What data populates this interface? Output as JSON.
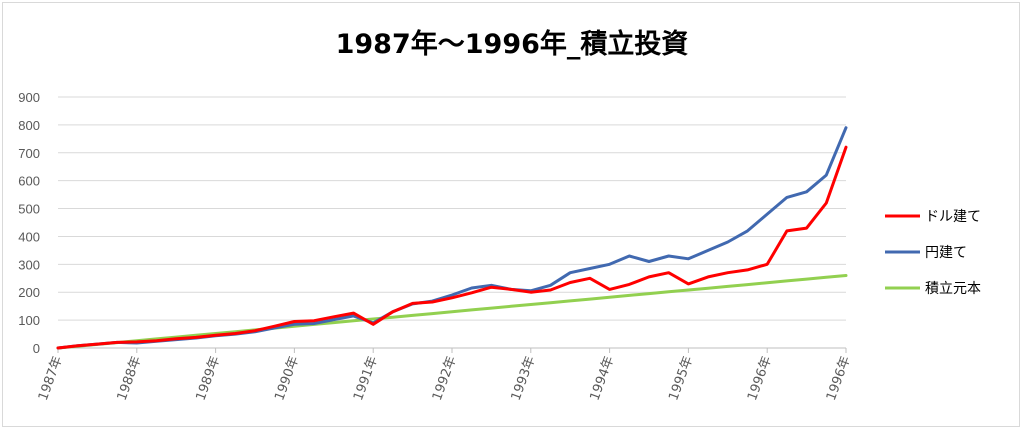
{
  "chart_data": {
    "type": "line",
    "title": "1987年～1996年_積立投資",
    "xlabel": "",
    "ylabel": "",
    "ylim": [
      0,
      900
    ],
    "yticks": [
      0,
      100,
      200,
      300,
      400,
      500,
      600,
      700,
      800,
      900
    ],
    "xticks": [
      "1987年",
      "1988年",
      "1989年",
      "1990年",
      "1991年",
      "1992年",
      "1993年",
      "1994年",
      "1995年",
      "1996年",
      "1996年"
    ],
    "grid": true,
    "legend_position": "right",
    "x": [
      1987.0,
      1987.25,
      1987.5,
      1987.75,
      1988.0,
      1988.25,
      1988.5,
      1988.75,
      1989.0,
      1989.25,
      1989.5,
      1989.75,
      1990.0,
      1990.25,
      1990.5,
      1990.75,
      1991.0,
      1991.25,
      1991.5,
      1991.75,
      1992.0,
      1992.25,
      1992.5,
      1992.75,
      1993.0,
      1993.25,
      1993.5,
      1993.75,
      1994.0,
      1994.25,
      1994.5,
      1994.75,
      1995.0,
      1995.25,
      1995.5,
      1995.75,
      1996.0,
      1996.25,
      1996.5,
      1996.75,
      1997.0
    ],
    "series": [
      {
        "name": "ドル建て",
        "color": "#ff0000",
        "values": [
          0,
          8,
          14,
          20,
          22,
          26,
          33,
          38,
          46,
          52,
          62,
          78,
          95,
          98,
          112,
          125,
          85,
          130,
          160,
          165,
          180,
          198,
          218,
          210,
          200,
          208,
          235,
          250,
          210,
          228,
          255,
          270,
          230,
          255,
          270,
          280,
          300,
          420,
          430,
          520,
          720
        ]
      },
      {
        "name": "円建て",
        "color": "#4169b0",
        "values": [
          0,
          8,
          14,
          20,
          18,
          24,
          30,
          36,
          44,
          50,
          58,
          72,
          85,
          88,
          102,
          115,
          90,
          130,
          158,
          168,
          190,
          215,
          225,
          210,
          205,
          225,
          270,
          285,
          300,
          330,
          310,
          330,
          320,
          350,
          380,
          420,
          480,
          540,
          560,
          620,
          790
        ]
      },
      {
        "name": "積立元本",
        "color": "#92d050",
        "values": [
          0,
          6.5,
          13,
          19.5,
          26,
          32.5,
          39,
          45.5,
          52,
          58.5,
          65,
          71.5,
          78,
          84.5,
          91,
          97.5,
          104,
          110.5,
          117,
          123.5,
          130,
          136.5,
          143,
          149.5,
          156,
          162.5,
          169,
          175.5,
          182,
          188.5,
          195,
          201.5,
          208,
          214.5,
          221,
          227.5,
          234,
          240.5,
          247,
          253.5,
          260
        ]
      }
    ]
  }
}
